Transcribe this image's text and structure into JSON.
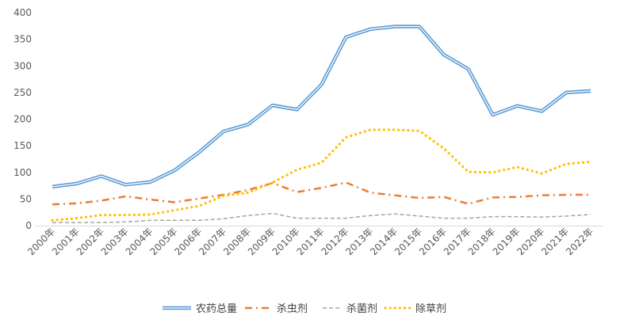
{
  "chart_data": {
    "type": "line",
    "title": "",
    "xlabel": "",
    "ylabel": "",
    "ylim": [
      0,
      400
    ],
    "yticks": [
      0,
      50,
      100,
      150,
      200,
      250,
      300,
      350,
      400
    ],
    "categories": [
      "2000年",
      "2001年",
      "2002年",
      "2003年",
      "2004年",
      "2005年",
      "2006年",
      "2007年",
      "2008年",
      "2009年",
      "2010年",
      "2011年",
      "2012年",
      "2013年",
      "2014年",
      "2015年",
      "2016年",
      "2017年",
      "2018年",
      "2019年",
      "2020年",
      "2021年",
      "2022年"
    ],
    "series": [
      {
        "name": "农药总量",
        "style": "double",
        "color": "#5b9bd5",
        "values": [
          73,
          79,
          93,
          77,
          82,
          104,
          138,
          177,
          190,
          226,
          218,
          265,
          354,
          369,
          374,
          374,
          321,
          294,
          208,
          225,
          215,
          250,
          253
        ]
      },
      {
        "name": "杀虫剂",
        "style": "dashdot",
        "color": "#ed7d31",
        "values": [
          40,
          42,
          47,
          55,
          49,
          44,
          51,
          58,
          67,
          80,
          63,
          71,
          81,
          62,
          57,
          52,
          54,
          41,
          53,
          54,
          57,
          58,
          58
        ]
      },
      {
        "name": "杀菌剂",
        "style": "dashed",
        "color": "#a5a5a5",
        "values": [
          6,
          6,
          6,
          7,
          10,
          10,
          10,
          13,
          19,
          23,
          14,
          14,
          14,
          19,
          22,
          18,
          14,
          14,
          17,
          17,
          16,
          18,
          21
        ]
      },
      {
        "name": "除草剂",
        "style": "dotted",
        "color": "#ffc000",
        "values": [
          10,
          14,
          20,
          20,
          21,
          29,
          37,
          56,
          62,
          81,
          105,
          118,
          166,
          180,
          180,
          178,
          145,
          101,
          100,
          110,
          98,
          116,
          120
        ]
      }
    ],
    "legend_position": "bottom",
    "grid": false
  }
}
